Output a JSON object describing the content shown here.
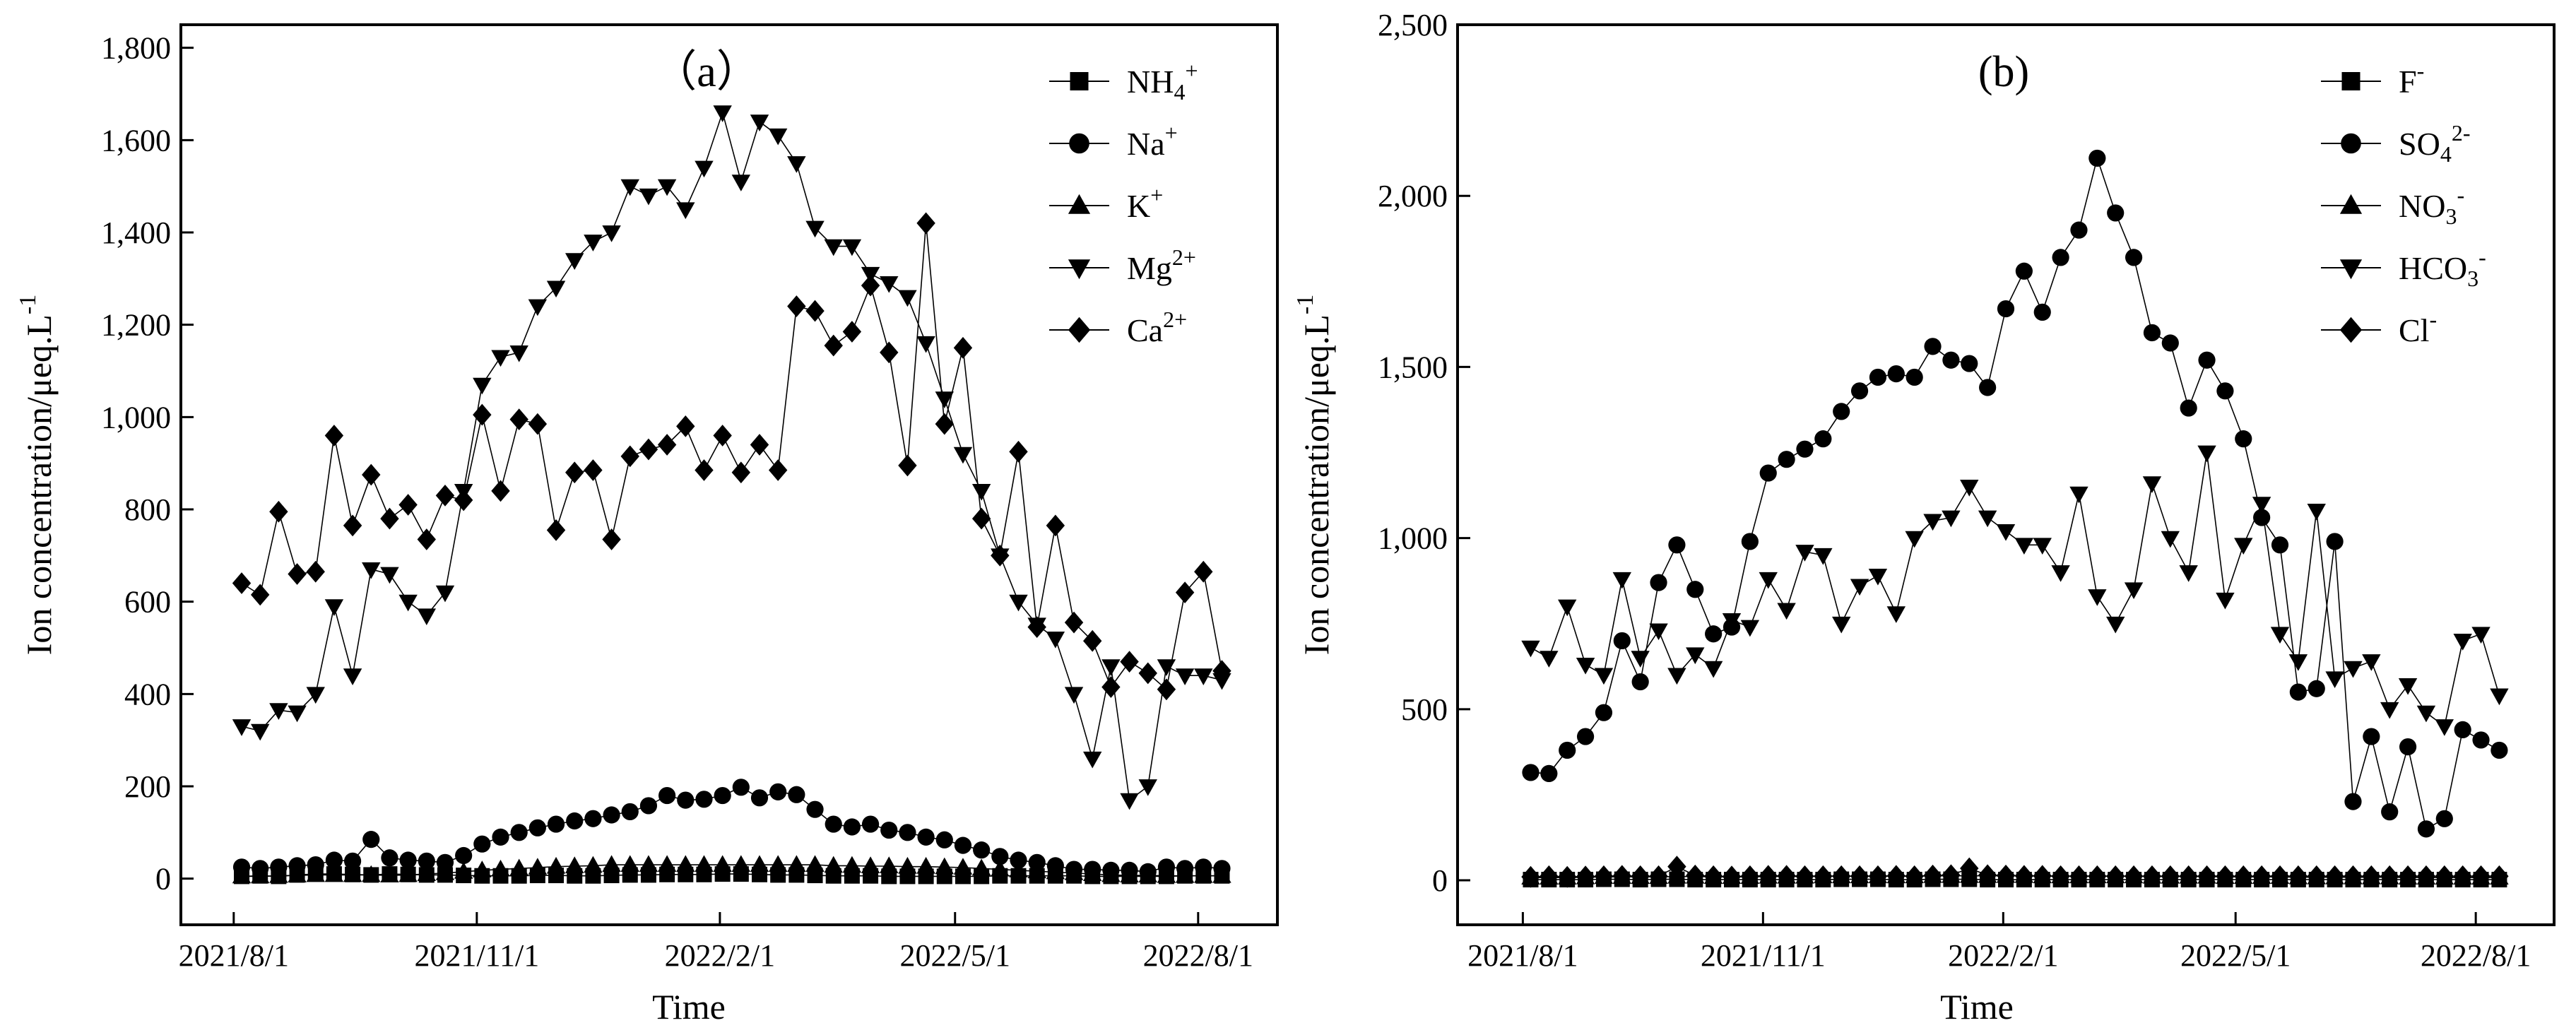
{
  "chart_data": [
    {
      "type": "line",
      "panel_label": "（a）",
      "xlabel": "Time",
      "ylabel": "Ion concentration/μeq.L",
      "ylabel_sup": "-1",
      "ylim": [
        -100,
        1850
      ],
      "yticks": [
        0,
        200,
        400,
        600,
        800,
        1000,
        1200,
        1400,
        1600,
        1800
      ],
      "ytick_labels": [
        "0",
        "200",
        "400",
        "600",
        "800",
        "1,000",
        "1,200",
        "1,400",
        "1,600",
        "1,800"
      ],
      "xticks": [
        0,
        92,
        184,
        273,
        365
      ],
      "xtick_labels": [
        "2021/8/1",
        "2021/11/1",
        "2022/2/1",
        "2022/5/1",
        "2022/8/1"
      ],
      "xlim": [
        -20,
        395
      ],
      "legend_position": "top-right",
      "x_days": [
        3,
        10,
        17,
        24,
        31,
        38,
        45,
        52,
        59,
        66,
        73,
        80,
        87,
        94,
        101,
        108,
        115,
        122,
        129,
        136,
        143,
        150,
        157,
        164,
        171,
        178,
        185,
        192,
        199,
        206,
        213,
        220,
        227,
        234,
        241,
        248,
        255,
        262,
        269,
        276,
        283,
        290,
        297,
        304,
        311,
        318,
        325,
        332,
        339,
        346,
        353,
        360,
        367,
        374
      ],
      "series": [
        {
          "name": "NH4+",
          "label_base": "NH",
          "label_sub": "4",
          "label_sup": "+",
          "marker": "square",
          "values": [
            5,
            6,
            5,
            8,
            10,
            10,
            9,
            8,
            10,
            9,
            8,
            8,
            7,
            6,
            6,
            6,
            7,
            7,
            6,
            6,
            7,
            8,
            8,
            9,
            9,
            9,
            10,
            10,
            9,
            8,
            8,
            7,
            6,
            6,
            6,
            5,
            5,
            5,
            5,
            5,
            5,
            6,
            6,
            6,
            6,
            6,
            5,
            5,
            5,
            5,
            5,
            6,
            6,
            6
          ]
        },
        {
          "name": "Na+",
          "label_base": "Na",
          "label_sup": "+",
          "marker": "circle",
          "values": [
            25,
            22,
            25,
            28,
            30,
            40,
            38,
            85,
            45,
            40,
            38,
            35,
            50,
            75,
            90,
            100,
            110,
            118,
            125,
            130,
            138,
            145,
            158,
            180,
            170,
            172,
            180,
            198,
            175,
            188,
            182,
            150,
            118,
            112,
            118,
            105,
            100,
            90,
            84,
            72,
            62,
            48,
            40,
            35,
            28,
            20,
            20,
            18,
            18,
            15,
            25,
            22,
            25,
            22
          ]
        },
        {
          "name": "K+",
          "label_base": "K",
          "label_sup": "+",
          "marker": "triangle-up",
          "values": [
            5,
            5,
            6,
            7,
            8,
            8,
            8,
            8,
            7,
            8,
            10,
            12,
            15,
            18,
            20,
            22,
            24,
            26,
            27,
            28,
            30,
            30,
            30,
            30,
            30,
            30,
            30,
            30,
            30,
            30,
            30,
            30,
            28,
            28,
            27,
            27,
            26,
            26,
            25,
            24,
            22,
            20,
            18,
            16,
            14,
            12,
            10,
            8,
            7,
            7,
            6,
            6,
            6,
            6
          ]
        },
        {
          "name": "Mg2+",
          "label_base": "Mg",
          "label_sup": "2+",
          "marker": "triangle-down",
          "values": [
            330,
            320,
            365,
            360,
            400,
            590,
            440,
            670,
            660,
            600,
            570,
            620,
            840,
            1070,
            1130,
            1140,
            1240,
            1280,
            1340,
            1380,
            1400,
            1500,
            1480,
            1500,
            1450,
            1540,
            1660,
            1510,
            1640,
            1610,
            1550,
            1410,
            1370,
            1370,
            1310,
            1290,
            1260,
            1160,
            1040,
            920,
            840,
            700,
            600,
            550,
            520,
            400,
            260,
            460,
            170,
            200,
            460,
            440,
            440,
            430
          ]
        },
        {
          "name": "Ca2+",
          "label_base": "Ca",
          "label_sup": "2+",
          "marker": "diamond",
          "values": [
            640,
            615,
            795,
            660,
            665,
            960,
            765,
            875,
            780,
            810,
            735,
            830,
            820,
            1005,
            840,
            995,
            985,
            755,
            880,
            885,
            735,
            915,
            930,
            940,
            980,
            885,
            960,
            880,
            940,
            885,
            1240,
            1230,
            1155,
            1185,
            1285,
            1140,
            895,
            1420,
            985,
            1150,
            780,
            700,
            925,
            545,
            765,
            555,
            515,
            415,
            470,
            445,
            410,
            620,
            665,
            450
          ]
        }
      ]
    },
    {
      "type": "line",
      "panel_label": "(b)",
      "xlabel": "Time",
      "ylabel": "Ion concentration/μeq.L",
      "ylabel_sup": "-1",
      "ylim": [
        -130,
        2500
      ],
      "yticks": [
        0,
        500,
        1000,
        1500,
        2000,
        2500
      ],
      "ytick_labels": [
        "0",
        "500",
        "1,000",
        "1,500",
        "2,000",
        "2,500"
      ],
      "xticks": [
        0,
        92,
        184,
        273,
        365
      ],
      "xtick_labels": [
        "2021/8/1",
        "2021/11/1",
        "2022/2/1",
        "2022/5/1",
        "2022/8/1"
      ],
      "xlim": [
        -25,
        395
      ],
      "legend_position": "top-right",
      "x_days": [
        3,
        10,
        17,
        24,
        31,
        38,
        45,
        52,
        59,
        66,
        73,
        80,
        87,
        94,
        101,
        108,
        115,
        122,
        129,
        136,
        143,
        150,
        157,
        164,
        171,
        178,
        185,
        192,
        199,
        206,
        213,
        220,
        227,
        234,
        241,
        248,
        255,
        262,
        269,
        276,
        283,
        290,
        297,
        304,
        311,
        318,
        325,
        332,
        339,
        346,
        353,
        360,
        367,
        374
      ],
      "series": [
        {
          "name": "F-",
          "label_base": "F",
          "label_sup": "-",
          "marker": "square",
          "values": [
            2,
            2,
            2,
            2,
            3,
            3,
            2,
            3,
            3,
            2,
            2,
            2,
            2,
            2,
            2,
            2,
            2,
            3,
            3,
            3,
            2,
            2,
            3,
            3,
            3,
            2,
            2,
            2,
            2,
            2,
            2,
            2,
            2,
            2,
            2,
            2,
            2,
            2,
            2,
            2,
            2,
            2,
            2,
            2,
            2,
            2,
            2,
            2,
            2,
            2,
            2,
            2,
            2,
            2
          ]
        },
        {
          "name": "SO42-",
          "label_base": "SO",
          "label_sub": "4",
          "label_sup": "2-",
          "marker": "circle",
          "values": [
            315,
            312,
            380,
            420,
            490,
            700,
            580,
            870,
            980,
            850,
            720,
            740,
            990,
            1190,
            1230,
            1260,
            1290,
            1370,
            1430,
            1470,
            1480,
            1470,
            1560,
            1520,
            1510,
            1440,
            1670,
            1780,
            1660,
            1820,
            1900,
            2110,
            1950,
            1820,
            1600,
            1570,
            1380,
            1520,
            1430,
            1290,
            1060,
            980,
            550,
            560,
            990,
            230,
            420,
            200,
            390,
            150,
            180,
            440,
            410,
            380
          ]
        },
        {
          "name": "NO3-",
          "label_base": "NO",
          "label_sub": "3",
          "label_sup": "-",
          "marker": "triangle-up",
          "values": [
            8,
            8,
            8,
            9,
            10,
            10,
            10,
            10,
            11,
            11,
            10,
            10,
            10,
            11,
            11,
            11,
            12,
            12,
            12,
            12,
            12,
            12,
            13,
            13,
            13,
            13,
            13,
            13,
            12,
            12,
            12,
            12,
            12,
            12,
            11,
            11,
            11,
            11,
            10,
            10,
            10,
            10,
            9,
            9,
            9,
            9,
            9,
            9,
            8,
            8,
            8,
            8,
            8,
            8
          ]
        },
        {
          "name": "HCO3-",
          "label_base": "HCO",
          "label_sub": "3",
          "label_sup": "-",
          "marker": "triangle-down",
          "values": [
            680,
            650,
            800,
            630,
            600,
            880,
            650,
            730,
            600,
            660,
            620,
            760,
            740,
            880,
            790,
            960,
            950,
            750,
            860,
            890,
            780,
            1000,
            1050,
            1060,
            1150,
            1060,
            1020,
            980,
            980,
            900,
            1130,
            830,
            750,
            850,
            1160,
            1000,
            900,
            1250,
            820,
            980,
            1100,
            720,
            640,
            1080,
            590,
            620,
            640,
            500,
            570,
            490,
            450,
            700,
            720,
            540
          ]
        },
        {
          "name": "Cl-",
          "label_base": "Cl",
          "label_sup": "-",
          "marker": "diamond",
          "values": [
            10,
            12,
            10,
            11,
            12,
            13,
            12,
            12,
            40,
            14,
            12,
            11,
            12,
            13,
            13,
            12,
            12,
            12,
            12,
            12,
            13,
            12,
            14,
            15,
            35,
            15,
            14,
            13,
            13,
            12,
            12,
            12,
            12,
            12,
            12,
            12,
            12,
            12,
            12,
            12,
            12,
            12,
            12,
            12,
            12,
            12,
            12,
            12,
            12,
            12,
            12,
            12,
            12,
            12
          ]
        }
      ]
    }
  ]
}
